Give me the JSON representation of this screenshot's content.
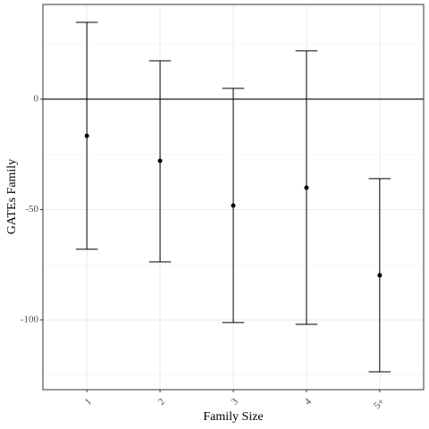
{
  "chart_data": {
    "type": "errorbar",
    "x_label": "Family Size",
    "y_label": "GATEs Family",
    "categories": [
      "1",
      "2",
      "3",
      "4",
      "5+"
    ],
    "series": [
      {
        "color": "#000000",
        "values": [
          -16.6,
          -27.9,
          -48.2,
          -40.1,
          -79.8
        ],
        "lower": [
          -68.0,
          -73.7,
          -101.2,
          -102.0,
          -123.5
        ],
        "upper": [
          34.8,
          17.4,
          4.9,
          21.9,
          -36.0
        ]
      }
    ],
    "ylim": [
      -131.6,
      42.9
    ],
    "yticks": [
      -100,
      -50,
      0
    ],
    "grid": true,
    "minor_grid": true,
    "reference_line": 0,
    "x_tick_rotation": 45
  }
}
